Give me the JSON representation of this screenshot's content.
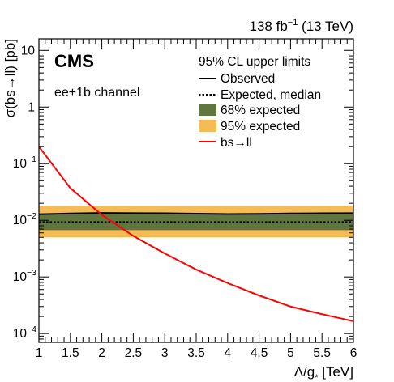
{
  "header": {
    "lumi": "138 fb",
    "lumi_exp": "−1",
    "energy": " (13 TeV)"
  },
  "labels": {
    "experiment": "CMS",
    "channel": "ee+1b channel"
  },
  "legend": {
    "title": "95% CL upper limits",
    "observed": "Observed",
    "expected": "Expected, median",
    "band68": "68% expected",
    "band95": "95% expected",
    "theory": "bs→ll"
  },
  "chart_data": {
    "type": "line",
    "xlabel": "Λ/g",
    "xlabel_sub": "*",
    "xlabel_unit": " [TeV]",
    "ylabel": "σ(bs→ll) [pb]",
    "xlim": [
      1,
      6
    ],
    "ylim": [
      7e-05,
      16
    ],
    "yscale": "log",
    "x_ticks": [
      "1",
      "1.5",
      "2",
      "2.5",
      "3",
      "3.5",
      "4",
      "4.5",
      "5",
      "5.5",
      "6"
    ],
    "y_ticks": [
      {
        "base": "10",
        "exp": "−4",
        "value": 0.0001
      },
      {
        "base": "10",
        "exp": "−3",
        "value": 0.001
      },
      {
        "base": "10",
        "exp": "−2",
        "value": 0.01
      },
      {
        "base": "10",
        "exp": "−1",
        "value": 0.1
      },
      {
        "base": "1",
        "exp": "",
        "value": 1
      },
      {
        "base": "10",
        "exp": "",
        "value": 10
      }
    ],
    "colors": {
      "observed": "#000000",
      "expected": "#000000",
      "band68": "#607641",
      "band95": "#f5bb54",
      "theory": "#ff0000"
    },
    "series": [
      {
        "name": "Observed",
        "x": [
          1,
          1.5,
          2,
          2.5,
          3,
          3.5,
          4,
          4.5,
          5,
          5.5,
          6
        ],
        "y": [
          0.0128,
          0.0132,
          0.0135,
          0.0134,
          0.0133,
          0.0131,
          0.0129,
          0.013,
          0.0132,
          0.0133,
          0.0134
        ]
      },
      {
        "name": "Expected, median",
        "x": [
          1,
          1.5,
          2,
          2.5,
          3,
          3.5,
          4,
          4.5,
          5,
          5.5,
          6
        ],
        "y": [
          0.0093,
          0.0093,
          0.0093,
          0.0093,
          0.0093,
          0.0093,
          0.0093,
          0.0093,
          0.0093,
          0.0093,
          0.0093
        ]
      },
      {
        "name": "68% expected",
        "x": [
          1,
          6
        ],
        "low": [
          0.0067,
          0.0067
        ],
        "high": [
          0.0132,
          0.0132
        ]
      },
      {
        "name": "95% expected",
        "x": [
          1,
          6
        ],
        "low": [
          0.005,
          0.005
        ],
        "high": [
          0.018,
          0.018
        ]
      },
      {
        "name": "bs→ll",
        "x": [
          1,
          1.5,
          2,
          2.5,
          3,
          3.5,
          4,
          4.5,
          5,
          5.5,
          6
        ],
        "y": [
          0.2,
          0.037,
          0.0125,
          0.0053,
          0.0026,
          0.00135,
          0.00078,
          0.00047,
          0.0003,
          0.00022,
          0.000165
        ]
      }
    ]
  }
}
